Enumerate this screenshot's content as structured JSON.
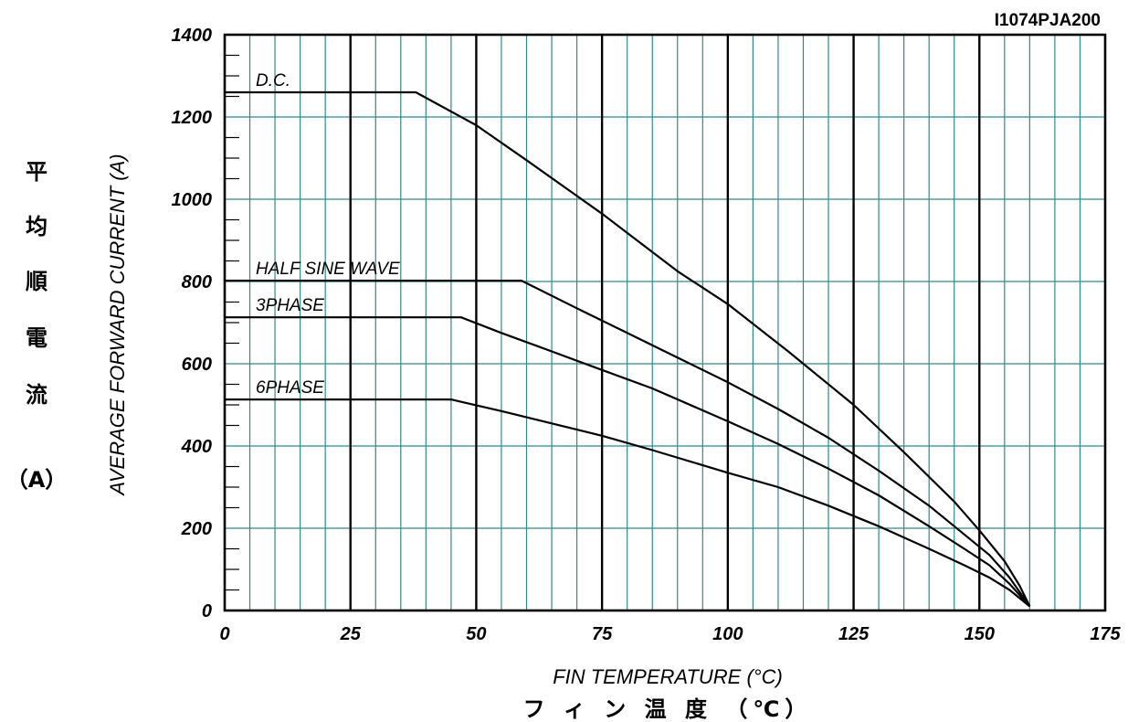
{
  "figure_code": "I1074PJA200",
  "x_label_en": "FIN TEMPERATURE (°C)",
  "x_label_jp": "フ ィ ン 温 度 （℃）",
  "y_label_en": "AVERAGE FORWARD CURRENT (A)",
  "y_label_jp": [
    "平",
    "均",
    "順",
    "電",
    "流",
    "（A）"
  ],
  "colors": {
    "major_grid": "#000000",
    "minor_grid": "#2e8b8b",
    "curve": "#000000"
  },
  "chart_data": {
    "type": "line",
    "title": "",
    "xlabel": "FIN TEMPERATURE (°C)",
    "ylabel": "AVERAGE FORWARD CURRENT (A)",
    "xlim": [
      0,
      175
    ],
    "ylim": [
      0,
      1400
    ],
    "xticks": [
      0,
      25,
      50,
      75,
      100,
      125,
      150,
      175
    ],
    "yticks": [
      0,
      200,
      400,
      600,
      800,
      1000,
      1200,
      1400
    ],
    "grid": true,
    "series": [
      {
        "name": "D.C.",
        "points": [
          [
            0,
            1260
          ],
          [
            38,
            1260
          ],
          [
            50,
            1180
          ],
          [
            60,
            1095
          ],
          [
            75,
            965
          ],
          [
            90,
            825
          ],
          [
            100,
            745
          ],
          [
            112,
            630
          ],
          [
            125,
            500
          ],
          [
            135,
            385
          ],
          [
            145,
            265
          ],
          [
            150,
            195
          ],
          [
            155,
            120
          ],
          [
            158,
            60
          ],
          [
            160,
            10
          ]
        ]
      },
      {
        "name": "HALF SINE WAVE",
        "points": [
          [
            0,
            802
          ],
          [
            59,
            802
          ],
          [
            70,
            735
          ],
          [
            80,
            675
          ],
          [
            90,
            615
          ],
          [
            100,
            555
          ],
          [
            110,
            490
          ],
          [
            120,
            420
          ],
          [
            130,
            340
          ],
          [
            140,
            255
          ],
          [
            147,
            185
          ],
          [
            152,
            135
          ],
          [
            156,
            80
          ],
          [
            158,
            45
          ],
          [
            160,
            10
          ]
        ]
      },
      {
        "name": "3PHASE",
        "points": [
          [
            0,
            713
          ],
          [
            47,
            713
          ],
          [
            55,
            675
          ],
          [
            65,
            630
          ],
          [
            75,
            585
          ],
          [
            85,
            540
          ],
          [
            100,
            460
          ],
          [
            110,
            405
          ],
          [
            120,
            345
          ],
          [
            130,
            280
          ],
          [
            140,
            205
          ],
          [
            147,
            150
          ],
          [
            152,
            110
          ],
          [
            156,
            65
          ],
          [
            160,
            10
          ]
        ]
      },
      {
        "name": "6PHASE",
        "points": [
          [
            0,
            513
          ],
          [
            45,
            513
          ],
          [
            55,
            485
          ],
          [
            65,
            455
          ],
          [
            75,
            425
          ],
          [
            85,
            390
          ],
          [
            100,
            335
          ],
          [
            110,
            300
          ],
          [
            120,
            255
          ],
          [
            130,
            205
          ],
          [
            140,
            150
          ],
          [
            147,
            110
          ],
          [
            152,
            80
          ],
          [
            156,
            50
          ],
          [
            160,
            10
          ]
        ]
      }
    ]
  }
}
